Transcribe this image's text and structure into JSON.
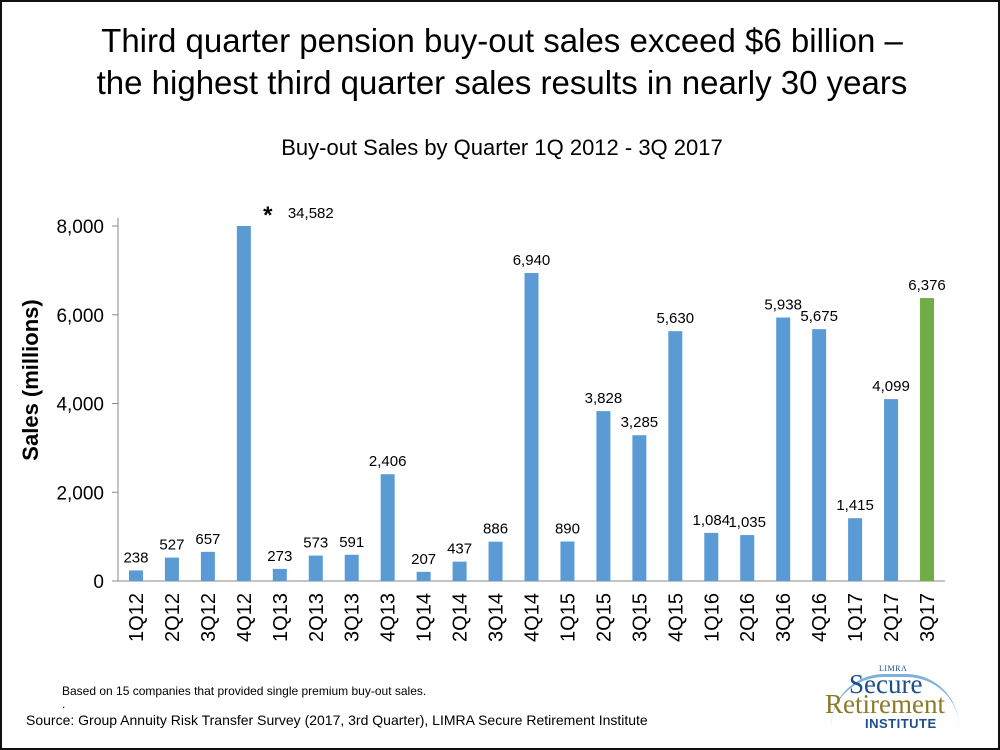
{
  "headline": {
    "line1": "Third quarter pension buy-out sales exceed $6 billion –",
    "line2": "the highest third quarter sales results in nearly 30 years"
  },
  "chart_data": {
    "type": "bar",
    "title": "Buy-out Sales by Quarter 1Q 2012 - 3Q 2017",
    "xlabel": "",
    "ylabel": "Sales (millions)",
    "ylim": [
      0,
      8000
    ],
    "yticks": [
      0,
      2000,
      4000,
      6000,
      8000
    ],
    "ytick_labels": [
      "0",
      "2,000",
      "4,000",
      "6,000",
      "8,000"
    ],
    "grid": false,
    "categories": [
      "1Q12",
      "2Q12",
      "3Q12",
      "4Q12",
      "1Q13",
      "2Q13",
      "3Q13",
      "4Q13",
      "1Q14",
      "2Q14",
      "3Q14",
      "4Q14",
      "1Q15",
      "2Q15",
      "3Q15",
      "4Q15",
      "1Q16",
      "2Q16",
      "3Q16",
      "4Q16",
      "1Q17",
      "2Q17",
      "3Q17"
    ],
    "values": [
      238,
      527,
      657,
      34582,
      273,
      573,
      591,
      2406,
      207,
      437,
      886,
      6940,
      890,
      3828,
      3285,
      5630,
      1084,
      1035,
      5938,
      5675,
      1415,
      4099,
      6376
    ],
    "value_labels": [
      "238",
      "527",
      "657",
      "34,582",
      "273",
      "573",
      "591",
      "2,406",
      "207",
      "437",
      "886",
      "6,940",
      "890",
      "3,828",
      "3,285",
      "5,630",
      "1,084",
      "1,035",
      "5,938",
      "5,675",
      "1,415",
      "4,099",
      "6,376"
    ],
    "highlight_index": 22,
    "truncated_index": 3,
    "truncated_marker": "*",
    "colors": {
      "default": "#5B9BD5",
      "highlight": "#70AD47"
    }
  },
  "footnote": "Based on 15 companies that provided single premium buy-out sales.",
  "footnote_mark": ".",
  "source": "Source: Group Annuity Risk Transfer Survey (2017, 3rd Quarter), LIMRA Secure Retirement Institute",
  "logo": {
    "top_text": "LIMRA",
    "line1": "Secure",
    "line2": "Retirement",
    "line3": "INSTITUTE"
  }
}
